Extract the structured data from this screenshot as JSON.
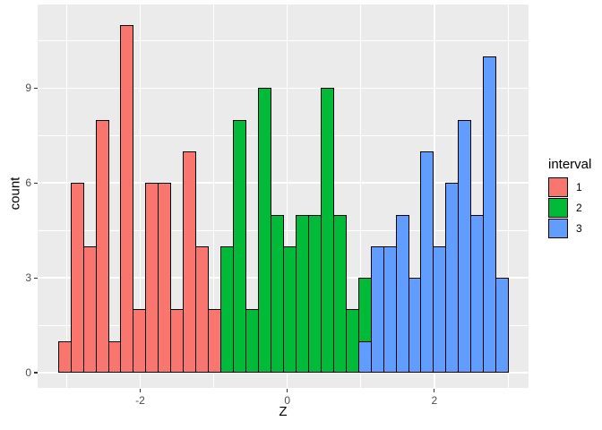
{
  "chart_data": {
    "type": "bar",
    "subtype": "stacked-histogram",
    "title": "",
    "xlabel": "Z",
    "ylabel": "count",
    "bin_start": -3.118,
    "bin_width": 0.17,
    "x_axis": {
      "tick_values": [
        -2,
        0,
        2
      ],
      "tick_labels": [
        "-2",
        "0",
        "2"
      ],
      "minor_gridlines": [
        -3,
        -1,
        1,
        3
      ],
      "lim": [
        -3.4,
        3.28
      ]
    },
    "y_axis": {
      "tick_values": [
        0,
        3,
        6,
        9
      ],
      "tick_labels": [
        "0",
        "3",
        "6",
        "9"
      ],
      "minor_gridlines": [
        1.5,
        4.5,
        7.5,
        10.5
      ],
      "lim": [
        -0.5,
        11.65
      ]
    },
    "legend": {
      "title": "interval",
      "position": "right",
      "entries": [
        {
          "label": "1",
          "color": "#F8766D"
        },
        {
          "label": "2",
          "color": "#00BA38"
        },
        {
          "label": "3",
          "color": "#619CFF"
        }
      ]
    },
    "panel_style": {
      "background": "#EBEBEB",
      "grid_color": "#FFFFFF",
      "bar_border": "#000000",
      "tick_text_color": "#4D4D4D"
    },
    "bars": [
      {
        "segments": [
          {
            "interval": "1",
            "count": 1
          }
        ]
      },
      {
        "segments": [
          {
            "interval": "1",
            "count": 6
          }
        ]
      },
      {
        "segments": [
          {
            "interval": "1",
            "count": 4
          }
        ]
      },
      {
        "segments": [
          {
            "interval": "1",
            "count": 8
          }
        ]
      },
      {
        "segments": [
          {
            "interval": "1",
            "count": 1
          }
        ]
      },
      {
        "segments": [
          {
            "interval": "1",
            "count": 11
          }
        ]
      },
      {
        "segments": [
          {
            "interval": "1",
            "count": 2
          }
        ]
      },
      {
        "segments": [
          {
            "interval": "1",
            "count": 6
          }
        ]
      },
      {
        "segments": [
          {
            "interval": "1",
            "count": 6
          }
        ]
      },
      {
        "segments": [
          {
            "interval": "1",
            "count": 2
          }
        ]
      },
      {
        "segments": [
          {
            "interval": "1",
            "count": 7
          }
        ]
      },
      {
        "segments": [
          {
            "interval": "1",
            "count": 4
          }
        ]
      },
      {
        "segments": [
          {
            "interval": "1",
            "count": 2
          }
        ]
      },
      {
        "segments": [
          {
            "interval": "2",
            "count": 4
          }
        ]
      },
      {
        "segments": [
          {
            "interval": "2",
            "count": 8
          }
        ]
      },
      {
        "segments": [
          {
            "interval": "2",
            "count": 2
          }
        ]
      },
      {
        "segments": [
          {
            "interval": "2",
            "count": 9
          }
        ]
      },
      {
        "segments": [
          {
            "interval": "2",
            "count": 5
          }
        ]
      },
      {
        "segments": [
          {
            "interval": "2",
            "count": 4
          }
        ]
      },
      {
        "segments": [
          {
            "interval": "2",
            "count": 5
          }
        ]
      },
      {
        "segments": [
          {
            "interval": "2",
            "count": 5
          }
        ]
      },
      {
        "segments": [
          {
            "interval": "2",
            "count": 9
          }
        ]
      },
      {
        "segments": [
          {
            "interval": "2",
            "count": 5
          }
        ]
      },
      {
        "segments": [
          {
            "interval": "2",
            "count": 2
          }
        ]
      },
      {
        "segments": [
          {
            "interval": "3",
            "count": 1
          },
          {
            "interval": "2",
            "count": 2
          }
        ]
      },
      {
        "segments": [
          {
            "interval": "3",
            "count": 4
          }
        ]
      },
      {
        "segments": [
          {
            "interval": "3",
            "count": 4
          }
        ]
      },
      {
        "segments": [
          {
            "interval": "3",
            "count": 5
          }
        ]
      },
      {
        "segments": [
          {
            "interval": "3",
            "count": 3
          }
        ]
      },
      {
        "segments": [
          {
            "interval": "3",
            "count": 7
          }
        ]
      },
      {
        "segments": [
          {
            "interval": "3",
            "count": 4
          }
        ]
      },
      {
        "segments": [
          {
            "interval": "3",
            "count": 6
          }
        ]
      },
      {
        "segments": [
          {
            "interval": "3",
            "count": 8
          }
        ]
      },
      {
        "segments": [
          {
            "interval": "3",
            "count": 5
          }
        ]
      },
      {
        "segments": [
          {
            "interval": "3",
            "count": 10
          }
        ]
      },
      {
        "segments": [
          {
            "interval": "3",
            "count": 3
          }
        ]
      }
    ]
  }
}
